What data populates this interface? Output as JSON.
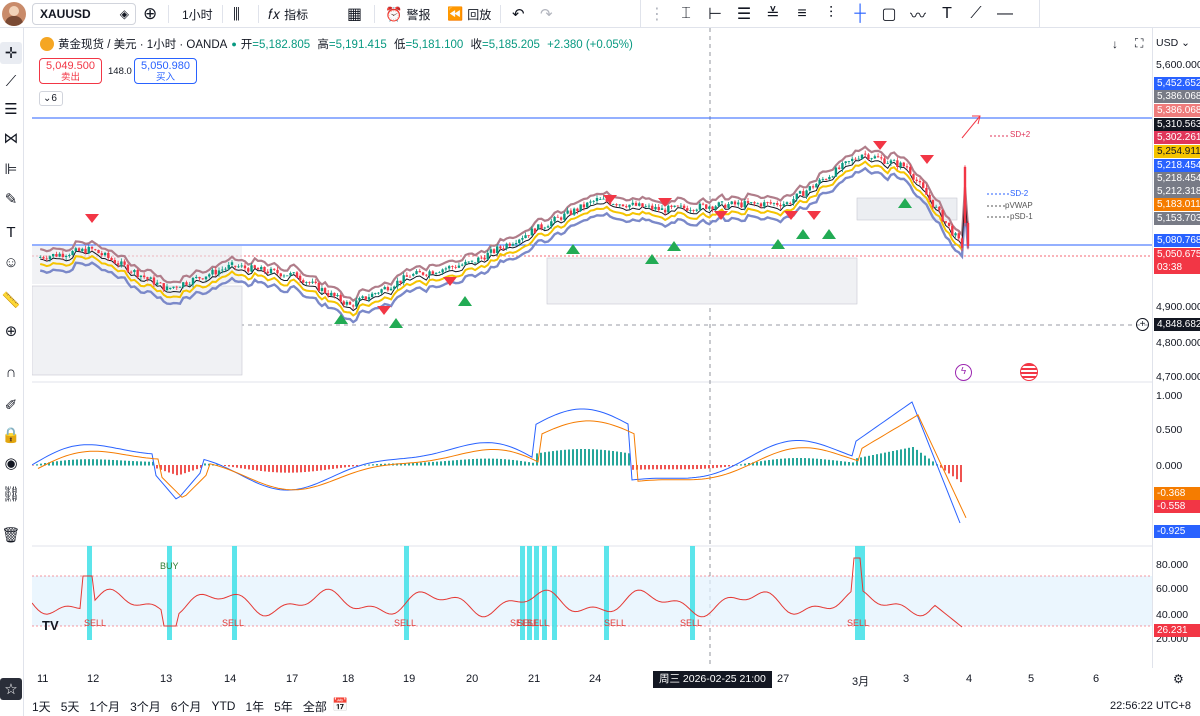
{
  "app": {
    "symbol": "XAUUSD",
    "interval": "1小时",
    "indicators_label": "指标",
    "alert_label": "警报",
    "replay_label": "回放",
    "avatar_color": "#c98b6a"
  },
  "legend": {
    "title": "黄金现货 / 美元 · 1小时 · OANDA",
    "open_label": "开",
    "open": "=5,182.805",
    "high_label": "高",
    "high": "=5,191.415",
    "low_label": "低",
    "low": "=5,181.100",
    "close_label": "收",
    "close": "=5,185.205",
    "change": "+2.380 (+0.05%)",
    "sell_price": "5,049.500",
    "sell_label": "卖出",
    "spread": "148.0",
    "buy_price": "5,050.980",
    "buy_label": "买入",
    "collapsed_count": "6",
    "down_color": "#f23645",
    "up_color": "#089981"
  },
  "price_axis": {
    "currency": "USD",
    "ticks": [
      "5,600.000",
      "4,900.000",
      "4,800.000",
      "4,700.000"
    ],
    "crosshair_price": "4,848.682",
    "tags": [
      {
        "text": "5,452.652",
        "color": "#2962ff"
      },
      {
        "text": "5,386.068",
        "color": "#787b86"
      },
      {
        "text": "5,386.068",
        "color": "#ef7c7c"
      },
      {
        "text": "5,310.563",
        "color": "#131722"
      },
      {
        "text": "5,302.261",
        "color": "#e0365a"
      },
      {
        "text": "5,254.911",
        "color": "#f5c400"
      },
      {
        "text": "5,218.454",
        "color": "#2962ff"
      },
      {
        "text": "5,218.454",
        "color": "#787b86"
      },
      {
        "text": "5,212.318",
        "color": "#787b86"
      },
      {
        "text": "5,183.011",
        "color": "#f57c00"
      },
      {
        "text": "5,153.703",
        "color": "#787b86"
      },
      {
        "text": "5,080.768",
        "color": "#2962ff"
      },
      {
        "text": "5,050.675",
        "color": "#f23645"
      },
      {
        "text": "03:38",
        "color": "#f23645"
      }
    ]
  },
  "vwap_labels": {
    "upper": "SD+2",
    "mid_upper": "SD-2",
    "pvwap": "pVWAP",
    "lower": "pSD-1"
  },
  "macd_axis": {
    "ticks": [
      "1.000",
      "0.500",
      "0.000"
    ],
    "tags": [
      {
        "text": "-0.368",
        "color": "#f57c00"
      },
      {
        "text": "-0.558",
        "color": "#f23645"
      },
      {
        "text": "-0.925",
        "color": "#2962ff"
      }
    ]
  },
  "rsi_axis": {
    "ticks": [
      "80.000",
      "60.000",
      "40.000",
      "20.000"
    ],
    "tag": {
      "text": "26.231",
      "color": "#f23645"
    },
    "buy_label": "BUY",
    "sell_label": "SELL"
  },
  "time_axis": {
    "labels": [
      "11",
      "12",
      "13",
      "14",
      "17",
      "18",
      "19",
      "20",
      "21",
      "24",
      "27",
      "3月",
      "3",
      "4",
      "5",
      "6"
    ],
    "crosshair_time": "周三 2026-02-25   21:00",
    "clock": "22:56:22 UTC+8"
  },
  "timeframes": [
    "1天",
    "5天",
    "1个月",
    "3个月",
    "6个月",
    "YTD",
    "1年",
    "5年",
    "全部"
  ],
  "chart_data": {
    "type": "candlestick",
    "symbol": "XAUUSD",
    "price_range": [
      4650,
      5620
    ],
    "points": [
      {
        "x": "11",
        "y": 5015
      },
      {
        "x": "12",
        "y": 5040
      },
      {
        "x": "13",
        "y": 4920
      },
      {
        "x": "14",
        "y": 4990
      },
      {
        "x": "17",
        "y": 4960
      },
      {
        "x": "18",
        "y": 4870
      },
      {
        "x": "19",
        "y": 4960
      },
      {
        "x": "20",
        "y": 5000
      },
      {
        "x": "21",
        "y": 5100
      },
      {
        "x": "24",
        "y": 5190
      },
      {
        "x": "25",
        "y": 5160
      },
      {
        "x": "26",
        "y": 5175
      },
      {
        "x": "27",
        "y": 5180
      },
      {
        "x": "3月",
        "y": 5330
      },
      {
        "x": "3",
        "y": 5290
      },
      {
        "x": "4",
        "y": 5050
      }
    ]
  }
}
